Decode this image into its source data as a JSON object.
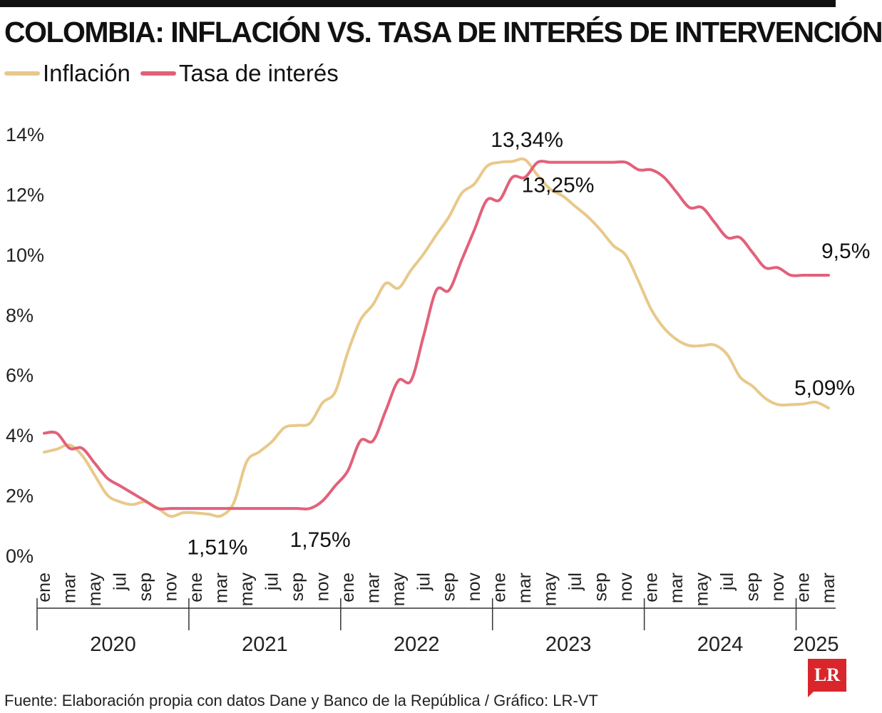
{
  "title": "COLOMBIA: INFLACIÓN VS. TASA DE INTERÉS DE INTERVENCIÓN",
  "legend": [
    {
      "label": "Inflación",
      "color": "#e8c98a"
    },
    {
      "label": "Tasa de interés",
      "color": "#e2617a"
    }
  ],
  "source": "Fuente: Elaboración propia con datos Dane y Banco de la República / Gráfico: LR-VT",
  "logo": "LR",
  "chart_data": {
    "type": "line",
    "ylim": [
      0,
      14
    ],
    "yticks": [
      "0%",
      "2%",
      "4%",
      "6%",
      "8%",
      "10%",
      "12%",
      "14%"
    ],
    "month_labels": [
      "ene",
      "mar",
      "may",
      "jul",
      "sep",
      "nov"
    ],
    "years": [
      "2020",
      "2021",
      "2022",
      "2023",
      "2024",
      "2025"
    ],
    "x": [
      "2020-01",
      "2020-02",
      "2020-03",
      "2020-04",
      "2020-05",
      "2020-06",
      "2020-07",
      "2020-08",
      "2020-09",
      "2020-10",
      "2020-11",
      "2020-12",
      "2021-01",
      "2021-02",
      "2021-03",
      "2021-04",
      "2021-05",
      "2021-06",
      "2021-07",
      "2021-08",
      "2021-09",
      "2021-10",
      "2021-11",
      "2021-12",
      "2022-01",
      "2022-02",
      "2022-03",
      "2022-04",
      "2022-05",
      "2022-06",
      "2022-07",
      "2022-08",
      "2022-09",
      "2022-10",
      "2022-11",
      "2022-12",
      "2023-01",
      "2023-02",
      "2023-03",
      "2023-04",
      "2023-05",
      "2023-06",
      "2023-07",
      "2023-08",
      "2023-09",
      "2023-10",
      "2023-11",
      "2023-12",
      "2024-01",
      "2024-02",
      "2024-03",
      "2024-04",
      "2024-05",
      "2024-06",
      "2024-07",
      "2024-08",
      "2024-09",
      "2024-10",
      "2024-11",
      "2024-12",
      "2025-01",
      "2025-02",
      "2025-03"
    ],
    "series": [
      {
        "name": "Inflación",
        "color": "#e8c98a",
        "values": [
          3.62,
          3.72,
          3.86,
          3.51,
          2.85,
          2.19,
          1.97,
          1.88,
          1.97,
          1.75,
          1.49,
          1.61,
          1.6,
          1.56,
          1.51,
          1.95,
          3.3,
          3.63,
          3.97,
          4.44,
          4.51,
          4.58,
          5.26,
          5.62,
          6.94,
          8.01,
          8.53,
          9.23,
          9.07,
          9.67,
          10.21,
          10.84,
          11.44,
          12.22,
          12.53,
          13.12,
          13.25,
          13.28,
          13.34,
          12.82,
          12.36,
          12.13,
          11.78,
          11.43,
          10.99,
          10.48,
          10.15,
          9.28,
          8.35,
          7.74,
          7.36,
          7.16,
          7.16,
          7.18,
          6.86,
          6.12,
          5.81,
          5.41,
          5.2,
          5.2,
          5.22,
          5.28,
          5.09
        ]
      },
      {
        "name": "Tasa de interés",
        "color": "#e2617a",
        "values": [
          4.25,
          4.25,
          3.75,
          3.75,
          3.25,
          2.75,
          2.5,
          2.25,
          2.0,
          1.75,
          1.75,
          1.75,
          1.75,
          1.75,
          1.75,
          1.75,
          1.75,
          1.75,
          1.75,
          1.75,
          1.75,
          1.75,
          2.0,
          2.5,
          3.0,
          4.0,
          4.0,
          5.0,
          6.0,
          6.0,
          7.5,
          9.0,
          9.0,
          10.0,
          11.0,
          12.0,
          12.0,
          12.75,
          12.75,
          13.25,
          13.25,
          13.25,
          13.25,
          13.25,
          13.25,
          13.25,
          13.25,
          13.0,
          13.0,
          12.75,
          12.25,
          11.75,
          11.75,
          11.25,
          10.75,
          10.75,
          10.25,
          9.75,
          9.75,
          9.5,
          9.5,
          9.5,
          9.5
        ]
      }
    ],
    "annotations": [
      {
        "text": "13,34%",
        "series": 0,
        "index": 38
      },
      {
        "text": "13,25%",
        "series": 1,
        "index": 40
      },
      {
        "text": "1,51%",
        "series": 0,
        "index": 14
      },
      {
        "text": "1,75%",
        "series": 1,
        "index": 21
      },
      {
        "text": "9,5%",
        "series": 1,
        "index": 62
      },
      {
        "text": "5,09%",
        "series": 0,
        "index": 62
      }
    ]
  }
}
